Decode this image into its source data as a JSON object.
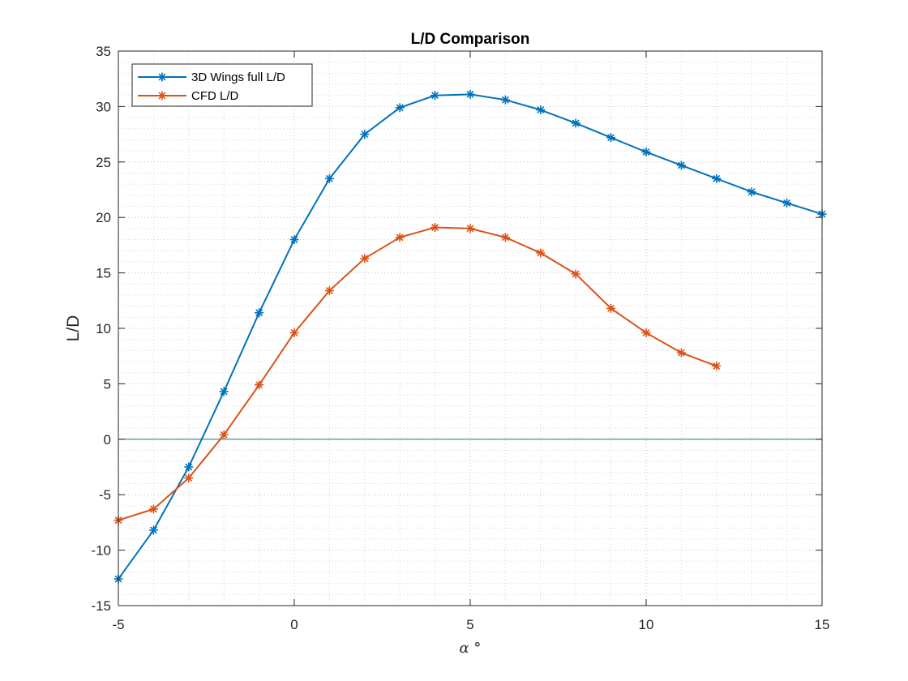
{
  "chart_data": {
    "type": "line",
    "title": "L/D Comparison",
    "xlabel": "α °",
    "ylabel": "L/D",
    "xlim": [
      -5,
      15
    ],
    "ylim": [
      -15,
      35
    ],
    "xticks": [
      -5,
      0,
      5,
      10,
      15
    ],
    "yticks": [
      -15,
      -10,
      -5,
      0,
      5,
      10,
      15,
      20,
      25,
      30,
      35
    ],
    "x_minor_step": 1,
    "y_minor_step": 1,
    "grid": "minor dotted",
    "reference_line": {
      "y": 0,
      "color": "#20707f"
    },
    "legend_position": "top-left",
    "series": [
      {
        "name": "3D Wings full L/D",
        "color": "#0072bd",
        "marker": "asterisk",
        "x": [
          -5,
          -4,
          -3,
          -2,
          -1,
          0,
          1,
          2,
          3,
          4,
          5,
          6,
          7,
          8,
          9,
          10,
          11,
          12,
          13,
          14,
          15
        ],
        "y": [
          -12.6,
          -8.2,
          -2.5,
          4.3,
          11.4,
          18.0,
          23.5,
          27.5,
          29.9,
          31.0,
          31.1,
          30.6,
          29.7,
          28.5,
          27.2,
          25.9,
          24.7,
          23.5,
          22.3,
          21.3,
          20.3
        ]
      },
      {
        "name": "CFD L/D",
        "color": "#d95319",
        "marker": "asterisk",
        "x": [
          -5,
          -4,
          -3,
          -2,
          -1,
          0,
          1,
          2,
          3,
          4,
          5,
          6,
          7,
          8,
          9,
          10,
          11,
          12
        ],
        "y": [
          -7.3,
          -6.3,
          -3.5,
          0.4,
          4.9,
          9.6,
          13.4,
          16.3,
          18.2,
          19.1,
          19.0,
          18.2,
          16.8,
          14.9,
          11.8,
          9.6,
          7.8,
          6.6
        ]
      }
    ]
  }
}
